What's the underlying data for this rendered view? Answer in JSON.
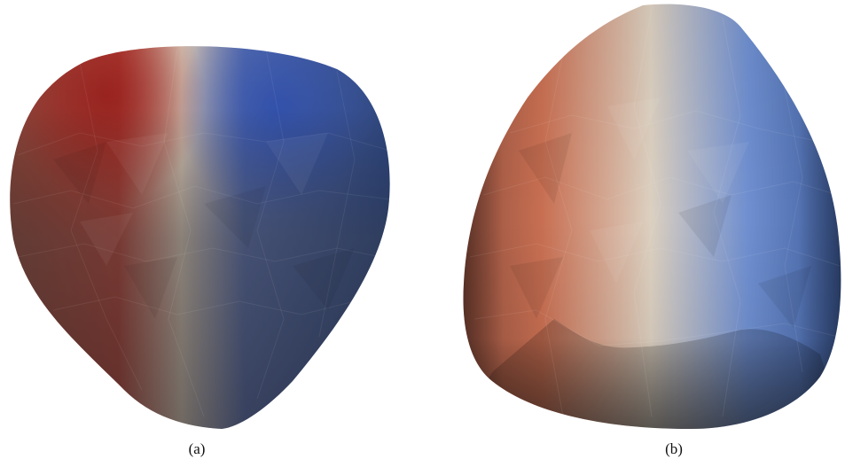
{
  "figure": {
    "panels": [
      {
        "label": "(a)"
      },
      {
        "label": "(b)"
      }
    ]
  },
  "colors": {
    "warm": "#a83a2c",
    "neutral": "#c9c0b4",
    "cool": "#3e5fae",
    "background": "#ffffff"
  }
}
